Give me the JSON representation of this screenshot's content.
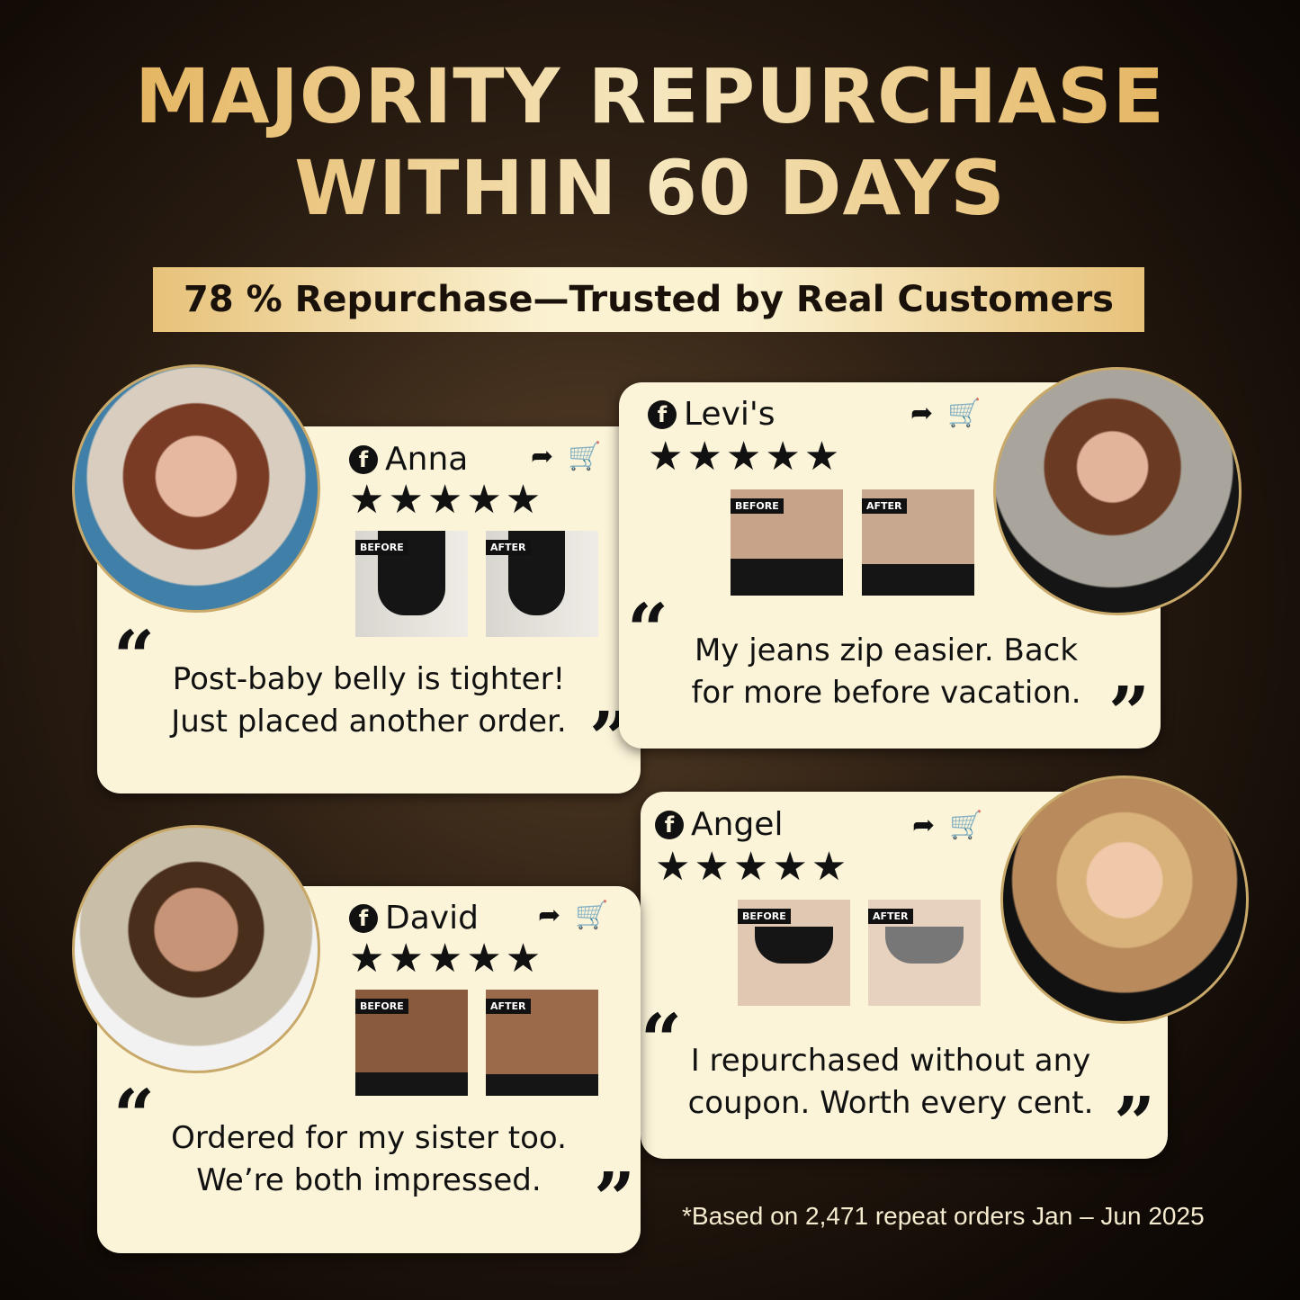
{
  "headline": {
    "line1": "MAJORITY REPURCHASE",
    "line2": "WITHIN 60 DAYS"
  },
  "banner": "78 % Repurchase—Trusted by Real Customers",
  "reviews": [
    {
      "name": "Anna",
      "stars": "★★★★★",
      "rating": 5,
      "before": "BEFORE",
      "after": "AFTER",
      "quote_line1": "Post-baby belly is tighter!",
      "quote_line2": "Just placed another order."
    },
    {
      "name": "Levi's",
      "stars": "★★★★★",
      "rating": 5,
      "before": "BEFORE",
      "after": "AFTER",
      "quote_line1": "My jeans zip easier. Back",
      "quote_line2": "for more before vacation."
    },
    {
      "name": "David",
      "stars": "★★★★★",
      "rating": 5,
      "before": "BEFORE",
      "after": "AFTER",
      "quote_line1": "Ordered for my sister too.",
      "quote_line2": "We’re both impressed."
    },
    {
      "name": "Angel",
      "stars": "★★★★★",
      "rating": 5,
      "before": "BEFORE",
      "after": "AFTER",
      "quote_line1": "I repurchased without any",
      "quote_line2": "coupon. Worth every cent."
    }
  ],
  "icons": {
    "facebook": "f",
    "share": "➦",
    "cart": "🛒"
  },
  "footnote": "*Based on 2,471 repeat orders Jan – Jun 2025",
  "colors": {
    "gold": "#e0a94a",
    "card": "#fcf4d9",
    "background": "#2e2014"
  }
}
